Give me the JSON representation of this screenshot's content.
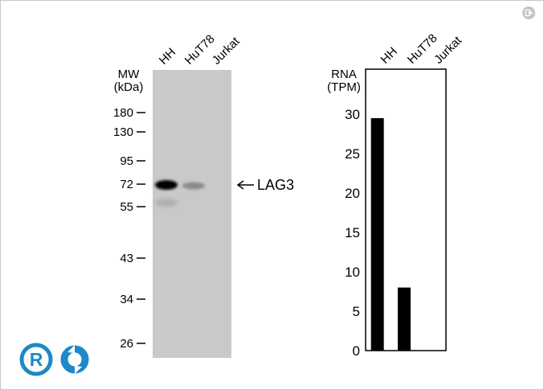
{
  "blot": {
    "mw_label_line1": "MW",
    "mw_label_line2": "(kDa)",
    "lanes": [
      "HH",
      "HuT78",
      "Jurkat"
    ],
    "markers": [
      "180",
      "130",
      "95",
      "72",
      "55",
      "43",
      "34",
      "26"
    ],
    "band_label": "LAG3"
  },
  "chart_data": {
    "type": "bar",
    "categories": [
      "HH",
      "HuT78",
      "Jurkat"
    ],
    "values": [
      29.5,
      8,
      0
    ],
    "ylabel_line1": "RNA",
    "ylabel_line2": "(TPM)",
    "yticks": [
      0,
      5,
      10,
      15,
      20,
      25,
      30
    ],
    "ylim": [
      0,
      30
    ],
    "bar_color": "#000000"
  },
  "colors": {
    "logo_blue": "#1e88c8",
    "blot_background": "#c9c9c9",
    "corner_button": "#c4c4c4"
  },
  "icons": {
    "corner": "exit-icon",
    "logo": "company-logo-icon"
  }
}
